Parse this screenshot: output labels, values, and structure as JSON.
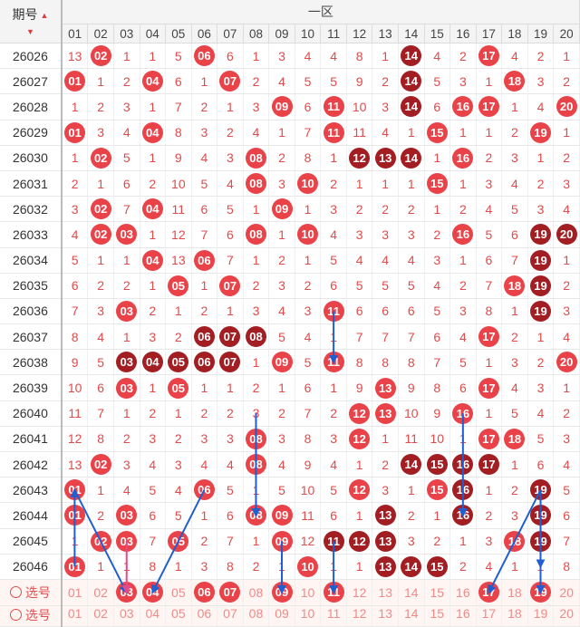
{
  "header": {
    "period_label": "期号",
    "zone_label": "一区",
    "numbers": [
      "01",
      "02",
      "03",
      "04",
      "05",
      "06",
      "07",
      "08",
      "09",
      "10",
      "11",
      "12",
      "13",
      "14",
      "15",
      "16",
      "17",
      "18",
      "19",
      "20"
    ]
  },
  "rows": [
    {
      "period": "26026",
      "cells": [
        "13",
        "02",
        "1",
        "1",
        "5",
        "06",
        "6",
        "1",
        "3",
        "4",
        "4",
        "8",
        "1",
        "14",
        "4",
        "2",
        "17",
        "4",
        "2",
        "1"
      ],
      "balls": [
        [
          1,
          "r"
        ],
        [
          5,
          "r"
        ],
        [
          13,
          "d"
        ],
        [
          16,
          "r"
        ]
      ]
    },
    {
      "period": "26027",
      "cells": [
        "01",
        "1",
        "2",
        "04",
        "6",
        "1",
        "07",
        "2",
        "4",
        "5",
        "5",
        "9",
        "2",
        "14",
        "5",
        "3",
        "1",
        "18",
        "3",
        "2"
      ],
      "balls": [
        [
          0,
          "r"
        ],
        [
          3,
          "r"
        ],
        [
          6,
          "r"
        ],
        [
          13,
          "d"
        ],
        [
          17,
          "r"
        ]
      ]
    },
    {
      "period": "26028",
      "cells": [
        "1",
        "2",
        "3",
        "1",
        "7",
        "2",
        "1",
        "3",
        "09",
        "6",
        "11",
        "10",
        "3",
        "14",
        "6",
        "16",
        "17",
        "1",
        "4",
        "20"
      ],
      "balls": [
        [
          8,
          "r"
        ],
        [
          10,
          "r"
        ],
        [
          13,
          "d"
        ],
        [
          15,
          "r"
        ],
        [
          16,
          "r"
        ],
        [
          19,
          "r"
        ]
      ]
    },
    {
      "period": "26029",
      "cells": [
        "01",
        "3",
        "4",
        "04",
        "8",
        "3",
        "2",
        "4",
        "1",
        "7",
        "11",
        "11",
        "4",
        "1",
        "15",
        "1",
        "1",
        "2",
        "19",
        "1"
      ],
      "balls": [
        [
          0,
          "r"
        ],
        [
          3,
          "r"
        ],
        [
          10,
          "r"
        ],
        [
          14,
          "r"
        ],
        [
          18,
          "r"
        ]
      ]
    },
    {
      "period": "26030",
      "cells": [
        "1",
        "02",
        "5",
        "1",
        "9",
        "4",
        "3",
        "08",
        "2",
        "8",
        "1",
        "12",
        "13",
        "14",
        "1",
        "16",
        "2",
        "3",
        "1",
        "2"
      ],
      "balls": [
        [
          1,
          "r"
        ],
        [
          7,
          "r"
        ],
        [
          11,
          "d"
        ],
        [
          12,
          "d"
        ],
        [
          13,
          "d"
        ],
        [
          15,
          "r"
        ]
      ]
    },
    {
      "period": "26031",
      "cells": [
        "2",
        "1",
        "6",
        "2",
        "10",
        "5",
        "4",
        "08",
        "3",
        "10",
        "2",
        "1",
        "1",
        "1",
        "15",
        "1",
        "3",
        "4",
        "2",
        "3"
      ],
      "balls": [
        [
          7,
          "r"
        ],
        [
          9,
          "r"
        ],
        [
          14,
          "r"
        ]
      ]
    },
    {
      "period": "26032",
      "cells": [
        "3",
        "02",
        "7",
        "04",
        "11",
        "6",
        "5",
        "1",
        "09",
        "1",
        "3",
        "2",
        "2",
        "2",
        "1",
        "2",
        "4",
        "5",
        "3",
        "4"
      ],
      "balls": [
        [
          1,
          "r"
        ],
        [
          3,
          "r"
        ],
        [
          8,
          "r"
        ]
      ]
    },
    {
      "period": "26033",
      "cells": [
        "4",
        "02",
        "03",
        "1",
        "12",
        "7",
        "6",
        "08",
        "1",
        "10",
        "4",
        "3",
        "3",
        "3",
        "2",
        "16",
        "5",
        "6",
        "19",
        "20"
      ],
      "balls": [
        [
          1,
          "r"
        ],
        [
          2,
          "r"
        ],
        [
          7,
          "r"
        ],
        [
          9,
          "r"
        ],
        [
          15,
          "r"
        ],
        [
          18,
          "d"
        ],
        [
          19,
          "d"
        ]
      ]
    },
    {
      "period": "26034",
      "cells": [
        "5",
        "1",
        "1",
        "04",
        "13",
        "06",
        "7",
        "1",
        "2",
        "1",
        "5",
        "4",
        "4",
        "4",
        "3",
        "1",
        "6",
        "7",
        "19",
        "1"
      ],
      "balls": [
        [
          3,
          "r"
        ],
        [
          5,
          "r"
        ],
        [
          18,
          "d"
        ]
      ]
    },
    {
      "period": "26035",
      "cells": [
        "6",
        "2",
        "2",
        "1",
        "05",
        "1",
        "07",
        "2",
        "3",
        "2",
        "6",
        "5",
        "5",
        "5",
        "4",
        "2",
        "7",
        "18",
        "19",
        "2"
      ],
      "balls": [
        [
          4,
          "r"
        ],
        [
          6,
          "r"
        ],
        [
          17,
          "r"
        ],
        [
          18,
          "d"
        ]
      ]
    },
    {
      "period": "26036",
      "cells": [
        "7",
        "3",
        "03",
        "2",
        "1",
        "2",
        "1",
        "3",
        "4",
        "3",
        "11",
        "6",
        "6",
        "6",
        "5",
        "3",
        "8",
        "1",
        "19",
        "3"
      ],
      "balls": [
        [
          2,
          "r"
        ],
        [
          10,
          "r"
        ],
        [
          18,
          "d"
        ]
      ]
    },
    {
      "period": "26037",
      "cells": [
        "8",
        "4",
        "1",
        "3",
        "2",
        "06",
        "07",
        "08",
        "5",
        "4",
        "1",
        "7",
        "7",
        "7",
        "6",
        "4",
        "17",
        "2",
        "1",
        "4"
      ],
      "balls": [
        [
          5,
          "d"
        ],
        [
          6,
          "d"
        ],
        [
          7,
          "d"
        ],
        [
          16,
          "r"
        ]
      ]
    },
    {
      "period": "26038",
      "cells": [
        "9",
        "5",
        "03",
        "04",
        "05",
        "06",
        "07",
        "1",
        "09",
        "5",
        "11",
        "8",
        "8",
        "8",
        "7",
        "5",
        "1",
        "3",
        "2",
        "20"
      ],
      "balls": [
        [
          2,
          "d"
        ],
        [
          3,
          "d"
        ],
        [
          4,
          "d"
        ],
        [
          5,
          "d"
        ],
        [
          6,
          "d"
        ],
        [
          8,
          "r"
        ],
        [
          10,
          "r"
        ],
        [
          19,
          "r"
        ]
      ]
    },
    {
      "period": "26039",
      "cells": [
        "10",
        "6",
        "03",
        "1",
        "05",
        "1",
        "1",
        "2",
        "1",
        "6",
        "1",
        "9",
        "13",
        "9",
        "8",
        "6",
        "17",
        "4",
        "3",
        "1"
      ],
      "balls": [
        [
          2,
          "r"
        ],
        [
          4,
          "r"
        ],
        [
          12,
          "r"
        ],
        [
          16,
          "r"
        ]
      ]
    },
    {
      "period": "26040",
      "cells": [
        "11",
        "7",
        "1",
        "2",
        "1",
        "2",
        "2",
        "3",
        "2",
        "7",
        "2",
        "12",
        "13",
        "10",
        "9",
        "16",
        "1",
        "5",
        "4",
        "2"
      ],
      "balls": [
        [
          11,
          "r"
        ],
        [
          12,
          "r"
        ],
        [
          15,
          "r"
        ]
      ]
    },
    {
      "period": "26041",
      "cells": [
        "12",
        "8",
        "2",
        "3",
        "2",
        "3",
        "3",
        "08",
        "3",
        "8",
        "3",
        "12",
        "1",
        "11",
        "10",
        "1",
        "17",
        "18",
        "5",
        "3"
      ],
      "balls": [
        [
          7,
          "r"
        ],
        [
          11,
          "r"
        ],
        [
          16,
          "r"
        ],
        [
          17,
          "r"
        ]
      ]
    },
    {
      "period": "26042",
      "cells": [
        "13",
        "02",
        "3",
        "4",
        "3",
        "4",
        "4",
        "08",
        "4",
        "9",
        "4",
        "1",
        "2",
        "14",
        "15",
        "16",
        "17",
        "1",
        "6",
        "4"
      ],
      "balls": [
        [
          1,
          "r"
        ],
        [
          7,
          "r"
        ],
        [
          13,
          "d"
        ],
        [
          14,
          "d"
        ],
        [
          15,
          "d"
        ],
        [
          16,
          "d"
        ]
      ]
    },
    {
      "period": "26043",
      "cells": [
        "01",
        "1",
        "4",
        "5",
        "4",
        "06",
        "5",
        "1",
        "5",
        "10",
        "5",
        "12",
        "3",
        "1",
        "15",
        "16",
        "1",
        "2",
        "19",
        "5"
      ],
      "balls": [
        [
          0,
          "r"
        ],
        [
          5,
          "r"
        ],
        [
          11,
          "r"
        ],
        [
          14,
          "r"
        ],
        [
          15,
          "d"
        ],
        [
          18,
          "d"
        ]
      ]
    },
    {
      "period": "26044",
      "cells": [
        "01",
        "2",
        "03",
        "6",
        "5",
        "1",
        "6",
        "08",
        "09",
        "11",
        "6",
        "1",
        "13",
        "2",
        "1",
        "16",
        "2",
        "3",
        "19",
        "6"
      ],
      "balls": [
        [
          0,
          "r"
        ],
        [
          2,
          "r"
        ],
        [
          7,
          "r"
        ],
        [
          8,
          "r"
        ],
        [
          12,
          "d"
        ],
        [
          15,
          "d"
        ],
        [
          18,
          "d"
        ]
      ]
    },
    {
      "period": "26045",
      "cells": [
        "1",
        "02",
        "03",
        "7",
        "05",
        "2",
        "7",
        "1",
        "09",
        "12",
        "11",
        "12",
        "13",
        "3",
        "2",
        "1",
        "3",
        "18",
        "19",
        "7"
      ],
      "balls": [
        [
          1,
          "r"
        ],
        [
          2,
          "r"
        ],
        [
          4,
          "r"
        ],
        [
          8,
          "r"
        ],
        [
          10,
          "d"
        ],
        [
          11,
          "d"
        ],
        [
          12,
          "d"
        ],
        [
          17,
          "r"
        ],
        [
          18,
          "d"
        ]
      ]
    },
    {
      "period": "26046",
      "cells": [
        "01",
        "1",
        "1",
        "8",
        "1",
        "3",
        "8",
        "2",
        "1",
        "10",
        "1",
        "1",
        "13",
        "14",
        "15",
        "2",
        "4",
        "1",
        "1",
        "8"
      ],
      "balls": [
        [
          0,
          "r"
        ],
        [
          9,
          "r"
        ],
        [
          12,
          "d"
        ],
        [
          13,
          "d"
        ],
        [
          14,
          "d"
        ]
      ]
    }
  ],
  "selection_row": {
    "label": "选号",
    "cells": [
      "01",
      "02",
      "03",
      "04",
      "05",
      "06",
      "07",
      "08",
      "09",
      "10",
      "11",
      "12",
      "13",
      "14",
      "15",
      "16",
      "17",
      "18",
      "19",
      "20"
    ],
    "selected": [
      2,
      3,
      5,
      6,
      8,
      10,
      16,
      18
    ]
  },
  "selection_row2": {
    "label": "选号",
    "cells": [
      "01",
      "02",
      "03",
      "04",
      "05",
      "06",
      "07",
      "08",
      "09",
      "10",
      "11",
      "12",
      "13",
      "14",
      "15",
      "16",
      "17",
      "18",
      "19",
      "20"
    ]
  },
  "colors": {
    "ball_red": "#e94248",
    "ball_dark": "#a31e22",
    "arrow_blue": "#1f5fd1",
    "arrow_pink": "#e64a8a"
  }
}
